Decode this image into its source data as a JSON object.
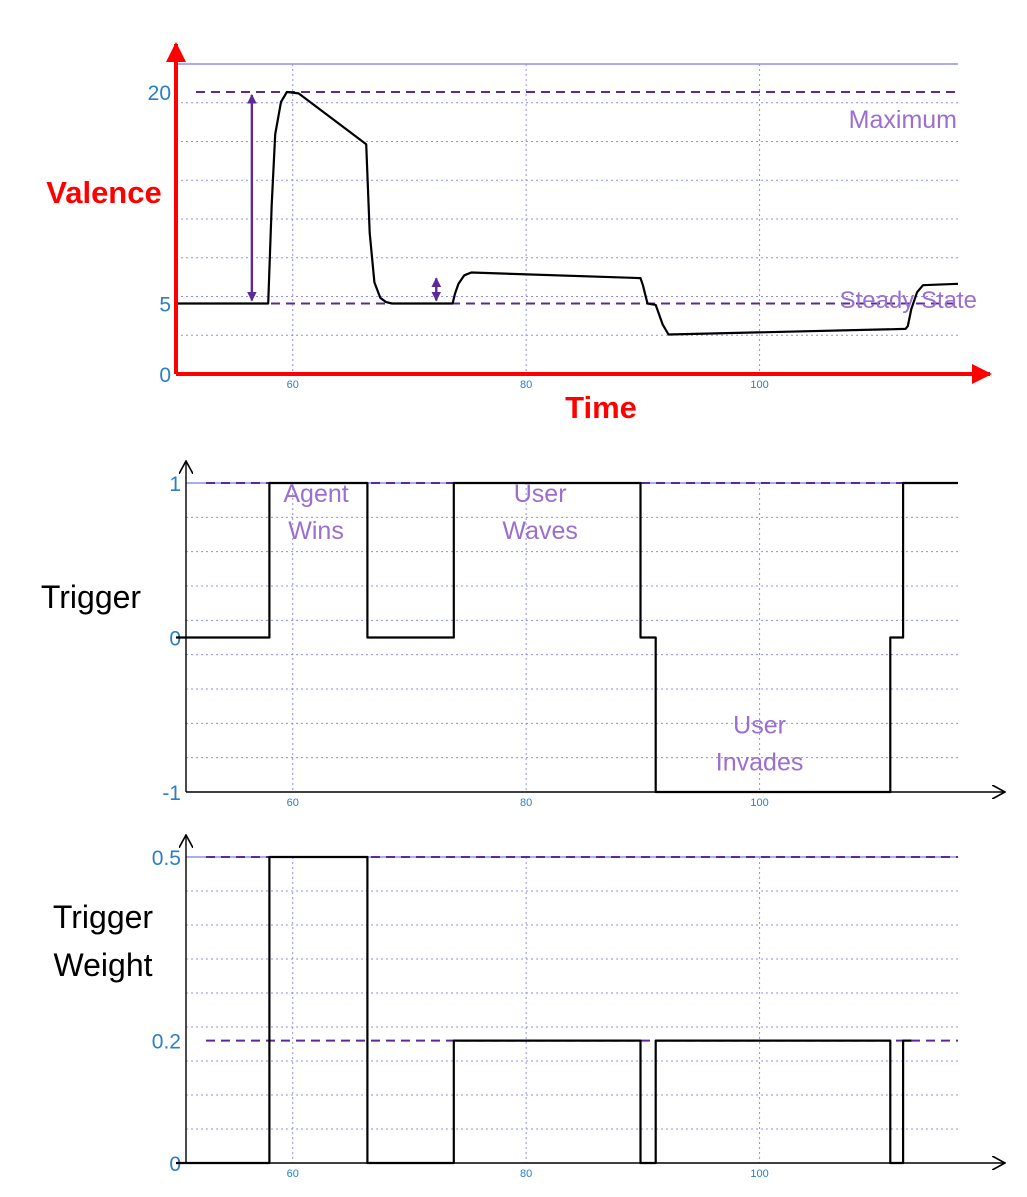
{
  "colors": {
    "grid": "#8f8ff2",
    "axis_valence": "#ff0000",
    "axis_other": "#000000",
    "signal": "#000000",
    "reference": "#5a2a98",
    "annotation": "#9a6fd0",
    "tick_label": "#2a7fc8",
    "title_red": "#ff0000"
  },
  "chart_data": [
    {
      "type": "line",
      "ylabel": "Valence",
      "xlabel": "Time",
      "xlim": [
        50,
        118
      ],
      "ylim": [
        0,
        21
      ],
      "x_ticks": [
        "60",
        "80",
        "100"
      ],
      "y_ticks": [
        "20",
        "5",
        "0"
      ],
      "reference_lines": [
        {
          "y": 20,
          "label": "Maximum"
        },
        {
          "y": 5,
          "label": "Steady State"
        }
      ],
      "annotations": [
        {
          "x": 56.5,
          "from": 5,
          "to": 20,
          "kind": "double-arrow"
        },
        {
          "x": 72.3,
          "from": 5,
          "to": 7,
          "kind": "double-arrow"
        }
      ],
      "series": [
        {
          "x": [
            50,
            57.9,
            58.2,
            58.5,
            59,
            59.5,
            60.5,
            66.3,
            66.6,
            67,
            67.5,
            68,
            68.5,
            69,
            73.7,
            73.9,
            74.2,
            74.7,
            75.3,
            89.8,
            90,
            90.4,
            91.1,
            91.4,
            91.7,
            92.2,
            112.5,
            112.7,
            113,
            113.5,
            114,
            117
          ],
          "y": [
            5,
            5,
            12,
            17,
            19.3,
            20,
            19.9,
            16.3,
            10,
            6.5,
            5.4,
            5.1,
            5,
            5,
            5,
            5.7,
            6.4,
            7,
            7.2,
            6.8,
            6.3,
            5,
            4.9,
            4.2,
            3.5,
            2.8,
            3.2,
            3.4,
            4.6,
            5.8,
            6.3,
            6.4
          ]
        }
      ]
    },
    {
      "type": "line",
      "ylabel": "Trigger",
      "xlim": [
        50,
        118
      ],
      "ylim": [
        -1,
        1
      ],
      "x_ticks": [
        "60",
        "80",
        "100"
      ],
      "y_ticks": [
        "1",
        "0",
        "-1"
      ],
      "reference_lines": [
        {
          "y": 1,
          "label": ""
        }
      ],
      "annotations": [
        {
          "x": 62,
          "y": 0.78,
          "text": "Agent\nWins"
        },
        {
          "x": 81.2,
          "y": 0.78,
          "text": "User\nWaves"
        },
        {
          "x": 100,
          "y": -0.72,
          "text": "User\nInvades"
        }
      ],
      "series": [
        {
          "x": [
            50,
            58,
            58,
            66.4,
            66.4,
            73.8,
            73.8,
            89.8,
            89.8,
            91.1,
            91.1,
            111.2,
            111.2,
            112.3,
            112.3,
            117
          ],
          "y": [
            0,
            0,
            1,
            1,
            0,
            0,
            1,
            1,
            0,
            0,
            -1,
            -1,
            0,
            0,
            1,
            1
          ]
        }
      ]
    },
    {
      "type": "line",
      "ylabel": "Trigger\nWeight",
      "xlim": [
        50,
        118
      ],
      "ylim": [
        0,
        0.5
      ],
      "x_ticks": [
        "60",
        "80",
        "100"
      ],
      "y_ticks": [
        "0.5",
        "0.2",
        "0"
      ],
      "reference_lines": [
        {
          "y": 0.5,
          "label": ""
        },
        {
          "y": 0.2,
          "label": ""
        }
      ],
      "series": [
        {
          "x": [
            50,
            58,
            58,
            66.4,
            66.4,
            73.8,
            73.8,
            89.8,
            89.8,
            91.1,
            91.1,
            111.2,
            111.2,
            112.3,
            112.3,
            113
          ],
          "y": [
            0,
            0,
            0.5,
            0.5,
            0,
            0,
            0.2,
            0.2,
            0,
            0,
            0.2,
            0.2,
            0,
            0,
            0.2,
            0.2
          ]
        }
      ]
    }
  ]
}
